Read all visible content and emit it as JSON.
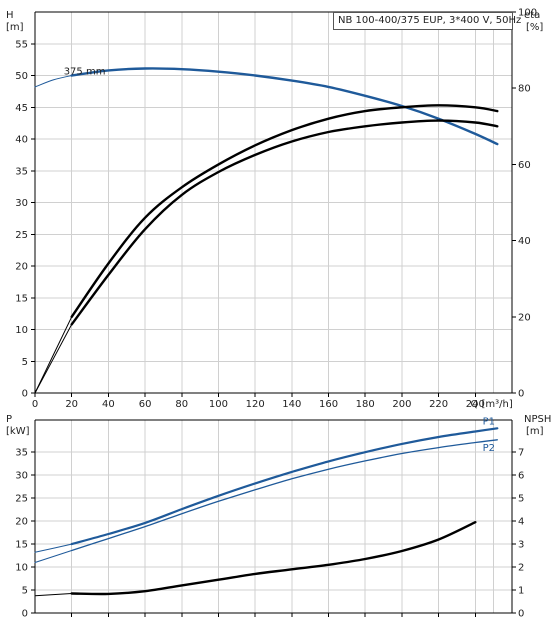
{
  "header": {
    "title": "NB 100-400/375 EUP, 3*400 V, 50Hz"
  },
  "colors": {
    "head_curve": "#1f5a9a",
    "eff_curve": "#000000",
    "power_curve": "#1f5a9a",
    "npsh_curve": "#000000",
    "grid": "#d0d0d0"
  },
  "chart_data": [
    {
      "id": "head_efficiency",
      "type": "line",
      "grid": true,
      "x_axis": {
        "label": "Q [m³/h]",
        "range": [
          0,
          260
        ],
        "ticks": [
          0,
          20,
          40,
          60,
          80,
          100,
          120,
          140,
          160,
          180,
          200,
          220,
          240
        ]
      },
      "y_left": {
        "label_top": "H",
        "label_unit": "[m]",
        "range": [
          0,
          60
        ],
        "ticks": [
          0,
          5,
          10,
          15,
          20,
          25,
          30,
          35,
          40,
          45,
          50,
          55
        ]
      },
      "y_right": {
        "label_top": "eta",
        "label_unit": "[%]",
        "range": [
          0,
          100
        ],
        "ticks": [
          0,
          20,
          40,
          60,
          80,
          100
        ]
      },
      "series": [
        {
          "name": "375 mm",
          "axis": "left",
          "style": "head",
          "x": [
            20,
            40,
            60,
            80,
            100,
            120,
            140,
            160,
            180,
            200,
            220,
            240,
            252
          ],
          "y": [
            50.0,
            50.8,
            51.1,
            51.0,
            50.6,
            50.0,
            49.2,
            48.2,
            46.8,
            45.2,
            43.2,
            40.8,
            39.2
          ]
        },
        {
          "name": "",
          "axis": "left",
          "style": "head-ext",
          "x": [
            0,
            10,
            20
          ],
          "y": [
            48.2,
            49.3,
            50.0
          ]
        },
        {
          "name": "",
          "axis": "right",
          "style": "eff",
          "x": [
            20,
            40,
            60,
            80,
            100,
            120,
            140,
            160,
            180,
            200,
            220,
            240,
            252
          ],
          "y": [
            20,
            34,
            46,
            54,
            60,
            65,
            69,
            72,
            74,
            75,
            75.5,
            75,
            74
          ]
        },
        {
          "name": "",
          "axis": "right",
          "style": "eff",
          "x": [
            20,
            40,
            60,
            80,
            100,
            120,
            140,
            160,
            180,
            200,
            220,
            240,
            252
          ],
          "y": [
            18,
            31,
            43,
            52,
            58,
            62.5,
            66,
            68.5,
            70,
            71,
            71.5,
            71,
            70
          ]
        },
        {
          "name": "",
          "axis": "right",
          "style": "eff-ext",
          "x": [
            0,
            20
          ],
          "y": [
            0,
            18
          ]
        },
        {
          "name": "",
          "axis": "right",
          "style": "eff-ext",
          "x": [
            0,
            20
          ],
          "y": [
            0,
            20
          ]
        }
      ],
      "annotations": [
        {
          "text": "375 mm",
          "x": 20,
          "y": 50.0
        }
      ]
    },
    {
      "id": "power_npsh",
      "type": "line",
      "grid": true,
      "x_axis": {
        "range": [
          0,
          260
        ],
        "ticks": [
          20,
          40,
          60,
          80,
          100,
          120,
          140,
          160,
          180,
          200,
          220,
          240
        ]
      },
      "y_left": {
        "label_top": "P",
        "label_unit": "[kW]",
        "range": [
          0,
          42
        ],
        "ticks": [
          0,
          5,
          10,
          15,
          20,
          25,
          30,
          35
        ]
      },
      "y_right": {
        "label_top": "NPSH",
        "label_unit": "[m]",
        "range": [
          0,
          8.4
        ],
        "ticks": [
          0,
          1,
          2,
          3,
          4,
          5,
          6,
          7
        ]
      },
      "series": [
        {
          "name": "P1",
          "axis": "left",
          "style": "p1",
          "x": [
            20,
            40,
            60,
            80,
            100,
            120,
            140,
            160,
            180,
            200,
            220,
            240,
            252
          ],
          "y": [
            15.0,
            17.2,
            19.6,
            22.6,
            25.5,
            28.2,
            30.7,
            33.0,
            35.0,
            36.8,
            38.3,
            39.5,
            40.2
          ]
        },
        {
          "name": "P2",
          "axis": "left",
          "style": "p2",
          "x": [
            20,
            40,
            60,
            80,
            100,
            120,
            140,
            160,
            180,
            200,
            220,
            240,
            252
          ],
          "y": [
            13.6,
            16.2,
            18.8,
            21.6,
            24.3,
            26.8,
            29.2,
            31.3,
            33.1,
            34.7,
            36.0,
            37.1,
            37.7
          ]
        },
        {
          "name": "",
          "axis": "left",
          "style": "p-ext",
          "x": [
            0,
            20
          ],
          "y": [
            13.2,
            15.0
          ]
        },
        {
          "name": "",
          "axis": "left",
          "style": "p-ext",
          "x": [
            0,
            20
          ],
          "y": [
            11.0,
            13.6
          ]
        },
        {
          "name": "",
          "axis": "right",
          "style": "npsh",
          "x": [
            20,
            40,
            60,
            80,
            100,
            120,
            140,
            160,
            180,
            200,
            220,
            240
          ],
          "y": [
            0.85,
            0.83,
            0.95,
            1.2,
            1.45,
            1.7,
            1.9,
            2.1,
            2.35,
            2.7,
            3.2,
            3.95
          ]
        },
        {
          "name": "",
          "axis": "right",
          "style": "npsh-ext",
          "x": [
            0,
            20
          ],
          "y": [
            0.75,
            0.85
          ]
        }
      ],
      "annotations": [
        {
          "text": "P1",
          "x": 244,
          "y": 41.0
        },
        {
          "text": "P2",
          "x": 244,
          "y": 35.3
        }
      ]
    }
  ]
}
